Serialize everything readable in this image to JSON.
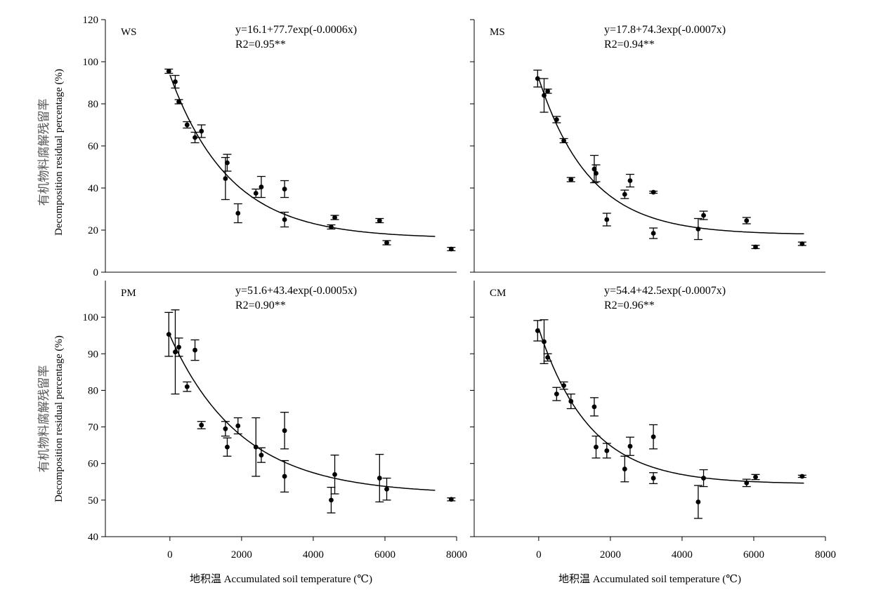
{
  "figure": {
    "xlabel": "地积温 Accumulated soil temperature (℃)",
    "ylabel_cn": "有机物料腐解残留率",
    "ylabel_en": "Decomposition residual percentage (%)"
  },
  "chart_data": [
    {
      "type": "scatter",
      "panel": "WS",
      "equation": "y=16.1+77.7exp(-0.0006x)",
      "r2": "R2=0.95**",
      "fit": {
        "a": 16.1,
        "b": 77.7,
        "k": 0.0006,
        "xmax": 7400
      },
      "xlim": [
        -1800,
        8000
      ],
      "ylim": [
        0,
        120
      ],
      "xticks": [],
      "yticks": [
        "0",
        "20",
        "40",
        "60",
        "80",
        "100",
        "120"
      ],
      "points": [
        {
          "x": -30,
          "y": 95.5,
          "err": 1
        },
        {
          "x": 150,
          "y": 90.5,
          "err": 3
        },
        {
          "x": 250,
          "y": 81,
          "err": 1
        },
        {
          "x": 480,
          "y": 70,
          "err": 1.5
        },
        {
          "x": 700,
          "y": 64,
          "err": 2.5
        },
        {
          "x": 880,
          "y": 67,
          "err": 3
        },
        {
          "x": 1550,
          "y": 44.5,
          "err": 10
        },
        {
          "x": 1600,
          "y": 52,
          "err": 4
        },
        {
          "x": 1900,
          "y": 28,
          "err": 4.5
        },
        {
          "x": 2400,
          "y": 37.5,
          "err": 2
        },
        {
          "x": 2550,
          "y": 40.5,
          "err": 5
        },
        {
          "x": 3200,
          "y": 25,
          "err": 3.5
        },
        {
          "x": 3200,
          "y": 39.5,
          "err": 4
        },
        {
          "x": 4500,
          "y": 21.5,
          "err": 1
        },
        {
          "x": 4600,
          "y": 26,
          "err": 1
        },
        {
          "x": 5850,
          "y": 24.5,
          "err": 1
        },
        {
          "x": 6050,
          "y": 14,
          "err": 1
        },
        {
          "x": 7850,
          "y": 11,
          "err": 0.8
        }
      ]
    },
    {
      "type": "scatter",
      "panel": "MS",
      "equation": "y=17.8+74.3exp(-0.0007x)",
      "r2": "R2=0.94**",
      "fit": {
        "a": 17.8,
        "b": 74.3,
        "k": 0.0007,
        "xmax": 7400
      },
      "xlim": [
        -1800,
        8000
      ],
      "ylim": [
        0,
        120
      ],
      "xticks": [],
      "yticks": [],
      "points": [
        {
          "x": -30,
          "y": 92,
          "err": 4
        },
        {
          "x": 150,
          "y": 84,
          "err": 8
        },
        {
          "x": 250,
          "y": 86,
          "err": 1
        },
        {
          "x": 500,
          "y": 72.5,
          "err": 1.5
        },
        {
          "x": 700,
          "y": 62.5,
          "err": 1
        },
        {
          "x": 900,
          "y": 44,
          "err": 1
        },
        {
          "x": 1550,
          "y": 49,
          "err": 6.5
        },
        {
          "x": 1600,
          "y": 47,
          "err": 4
        },
        {
          "x": 1900,
          "y": 25,
          "err": 3
        },
        {
          "x": 2400,
          "y": 37,
          "err": 2
        },
        {
          "x": 2550,
          "y": 43.5,
          "err": 3
        },
        {
          "x": 3200,
          "y": 38,
          "err": 0.5
        },
        {
          "x": 3200,
          "y": 18.5,
          "err": 2.5
        },
        {
          "x": 4450,
          "y": 20.5,
          "err": 5
        },
        {
          "x": 4600,
          "y": 27,
          "err": 2
        },
        {
          "x": 5800,
          "y": 24.5,
          "err": 1.5
        },
        {
          "x": 6050,
          "y": 12,
          "err": 0.8
        },
        {
          "x": 7350,
          "y": 13.5,
          "err": 0.8
        }
      ]
    },
    {
      "type": "scatter",
      "panel": "PM",
      "equation": "y=51.6+43.4exp(-0.0005x)",
      "r2": "R2=0.90**",
      "fit": {
        "a": 51.6,
        "b": 43.4,
        "k": 0.0005,
        "xmax": 7400
      },
      "xlim": [
        -1800,
        8000
      ],
      "ylim": [
        40,
        110
      ],
      "xticks": [
        "0",
        "2000",
        "4000",
        "6000",
        "8000"
      ],
      "yticks": [
        "40",
        "50",
        "60",
        "70",
        "80",
        "90",
        "100"
      ],
      "points": [
        {
          "x": -30,
          "y": 95.3,
          "err": 6
        },
        {
          "x": 150,
          "y": 90.5,
          "err": 11.5
        },
        {
          "x": 250,
          "y": 91.8,
          "err": 2.5
        },
        {
          "x": 480,
          "y": 81,
          "err": 1.3
        },
        {
          "x": 700,
          "y": 91,
          "err": 2.8
        },
        {
          "x": 880,
          "y": 70.5,
          "err": 1
        },
        {
          "x": 1550,
          "y": 69.5,
          "err": 2
        },
        {
          "x": 1600,
          "y": 64.5,
          "err": 2.5
        },
        {
          "x": 1900,
          "y": 70.3,
          "err": 2.2
        },
        {
          "x": 2400,
          "y": 64.5,
          "err": 8
        },
        {
          "x": 2550,
          "y": 62.3,
          "err": 2
        },
        {
          "x": 3200,
          "y": 69,
          "err": 5
        },
        {
          "x": 3200,
          "y": 56.5,
          "err": 4.3
        },
        {
          "x": 4500,
          "y": 50,
          "err": 3.5
        },
        {
          "x": 4600,
          "y": 57,
          "err": 5.3
        },
        {
          "x": 5850,
          "y": 56,
          "err": 6.5
        },
        {
          "x": 6050,
          "y": 53,
          "err": 3
        },
        {
          "x": 7850,
          "y": 50.2,
          "err": 0.4
        }
      ]
    },
    {
      "type": "scatter",
      "panel": "CM",
      "equation": "y=54.4+42.5exp(-0.0007x)",
      "r2": "R2=0.96**",
      "fit": {
        "a": 54.4,
        "b": 42.5,
        "k": 0.0007,
        "xmax": 7400
      },
      "xlim": [
        -1800,
        8000
      ],
      "ylim": [
        40,
        110
      ],
      "xticks": [
        "0",
        "2000",
        "4000",
        "6000",
        "8000"
      ],
      "yticks": [],
      "points": [
        {
          "x": -30,
          "y": 96.3,
          "err": 2.8
        },
        {
          "x": 150,
          "y": 93.3,
          "err": 6
        },
        {
          "x": 250,
          "y": 89,
          "err": 1
        },
        {
          "x": 500,
          "y": 79,
          "err": 1.8
        },
        {
          "x": 700,
          "y": 81.3,
          "err": 1
        },
        {
          "x": 900,
          "y": 77,
          "err": 2
        },
        {
          "x": 1550,
          "y": 75.5,
          "err": 2.5
        },
        {
          "x": 1600,
          "y": 64.5,
          "err": 3
        },
        {
          "x": 1900,
          "y": 63.5,
          "err": 2
        },
        {
          "x": 2400,
          "y": 58.5,
          "err": 3.5
        },
        {
          "x": 2550,
          "y": 64.7,
          "err": 2.5
        },
        {
          "x": 3200,
          "y": 67.3,
          "err": 3.3
        },
        {
          "x": 3200,
          "y": 56,
          "err": 1.5
        },
        {
          "x": 4450,
          "y": 49.5,
          "err": 4.5
        },
        {
          "x": 4600,
          "y": 56,
          "err": 2.3
        },
        {
          "x": 5800,
          "y": 54.7,
          "err": 1
        },
        {
          "x": 6050,
          "y": 56.3,
          "err": 0.7
        },
        {
          "x": 7350,
          "y": 56.5,
          "err": 0.3
        }
      ]
    }
  ]
}
